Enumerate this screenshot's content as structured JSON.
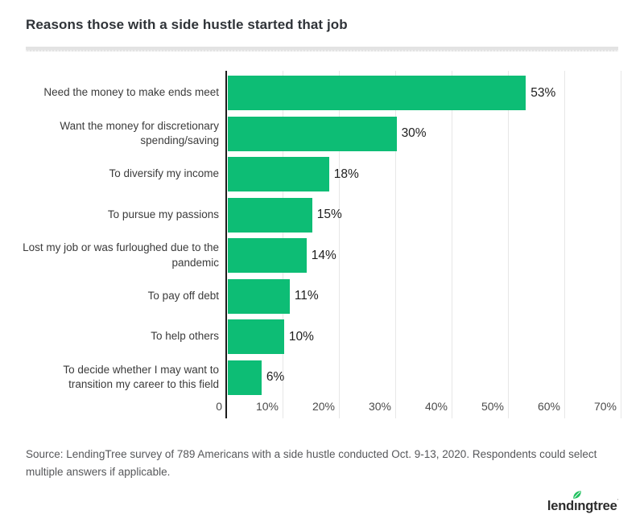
{
  "header": {
    "title": "Reasons those with a side hustle started that job"
  },
  "chart_data": {
    "type": "bar",
    "orientation": "horizontal",
    "title": "Reasons those with a side hustle started that job",
    "categories": [
      "Need the money to make ends meet",
      "Want the money for discretionary spending/saving",
      "To diversify my income",
      "To pursue my passions",
      "Lost my job or was furloughed due to the pandemic",
      "To pay off debt",
      "To help others",
      "To decide whether I may want to transition my career to this field"
    ],
    "values": [
      53,
      30,
      18,
      15,
      14,
      11,
      10,
      6
    ],
    "value_labels": [
      "53%",
      "30%",
      "18%",
      "15%",
      "14%",
      "11%",
      "10%",
      "6%"
    ],
    "xlabel": "",
    "ylabel": "",
    "xlim": [
      0,
      70
    ],
    "x_ticks": [
      "0",
      "10%",
      "20%",
      "30%",
      "40%",
      "50%",
      "60%",
      "70%"
    ],
    "grid": "vertical",
    "legend": "none",
    "bar_color": "#0dbd75",
    "axis_color": "#1b1b1b",
    "gridline_color": "#e7e7e7"
  },
  "footer": {
    "source": "Source: LendingTree survey of 789 Americans with a side hustle conducted Oct. 9-13, 2020. Respondents could select multiple answers if applicable.",
    "logo_text": "lendingtree",
    "logo_leaf_color": "#1fc05e"
  }
}
